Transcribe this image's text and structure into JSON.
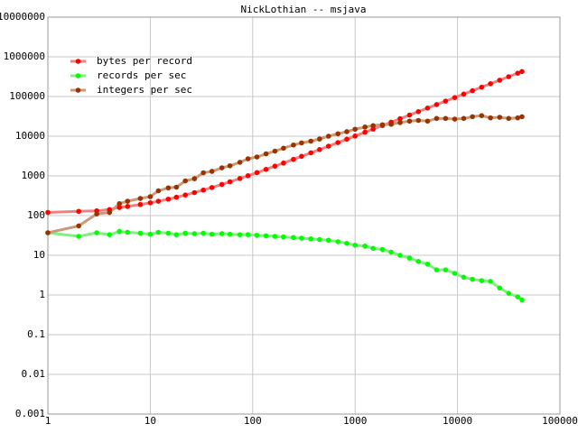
{
  "chart_data": {
    "type": "line",
    "title": "NickLothian -- msjava",
    "x": [
      1,
      2,
      3,
      4,
      5,
      6,
      8,
      10,
      12,
      15,
      18,
      22,
      27,
      33,
      40,
      50,
      60,
      75,
      90,
      110,
      135,
      165,
      200,
      250,
      300,
      370,
      450,
      550,
      680,
      830,
      1000,
      1250,
      1500,
      1850,
      2250,
      2750,
      3400,
      4150,
      5100,
      6250,
      7650,
      9400,
      11500,
      14000,
      17200,
      21000,
      25800,
      31600,
      38700,
      42600
    ],
    "series": [
      {
        "name": "bytes per record",
        "color": "#ff0000",
        "line_color": "#f08080",
        "values": [
          120,
          128,
          132,
          142,
          160,
          170,
          190,
          210,
          230,
          260,
          290,
          330,
          380,
          440,
          510,
          610,
          710,
          860,
          1010,
          1210,
          1460,
          1760,
          2110,
          2610,
          3110,
          3810,
          4610,
          5610,
          6910,
          8410,
          10100,
          12600,
          15100,
          18600,
          22600,
          27600,
          34100,
          41600,
          51100,
          62600,
          76600,
          94100,
          115000,
          140000,
          172000,
          210000,
          258000,
          316000,
          387000,
          426000
        ]
      },
      {
        "name": "records per sec",
        "color": "#00ff00",
        "line_color": "#80f080",
        "values": [
          37,
          30,
          37,
          33,
          40,
          38,
          36,
          34,
          38,
          36,
          33,
          36,
          35,
          36,
          34,
          35,
          34,
          33,
          33,
          32,
          31,
          30,
          29,
          28,
          27,
          26,
          25,
          24,
          22,
          20,
          18,
          17,
          15,
          14,
          12,
          10,
          8.5,
          7,
          6,
          4.3,
          4.3,
          3.5,
          2.8,
          2.5,
          2.3,
          2.2,
          1.5,
          1.1,
          0.9,
          0.75
        ]
      },
      {
        "name": "integers per sec",
        "color": "#993300",
        "line_color": "#cc9977",
        "values": [
          37,
          55,
          110,
          120,
          200,
          230,
          270,
          300,
          420,
          500,
          520,
          750,
          850,
          1200,
          1300,
          1600,
          1800,
          2200,
          2700,
          3000,
          3600,
          4200,
          5000,
          6000,
          6800,
          7500,
          8500,
          10000,
          11500,
          13000,
          15000,
          17000,
          18500,
          19500,
          20000,
          22000,
          24000,
          25000,
          24000,
          28000,
          28000,
          27000,
          28000,
          31000,
          33000,
          29000,
          30000,
          28000,
          29000,
          31000
        ]
      }
    ],
    "xlim": [
      1,
      100000
    ],
    "xticks": [
      1,
      10,
      100,
      1000,
      10000,
      100000
    ],
    "ylim": [
      0.001,
      10000000
    ],
    "yticks": [
      0.001,
      0.01,
      0.1,
      1,
      10,
      100,
      1000,
      10000,
      100000,
      1000000,
      10000000
    ],
    "log_x": true,
    "log_y": true,
    "grid": true,
    "legend": "upper-left"
  }
}
